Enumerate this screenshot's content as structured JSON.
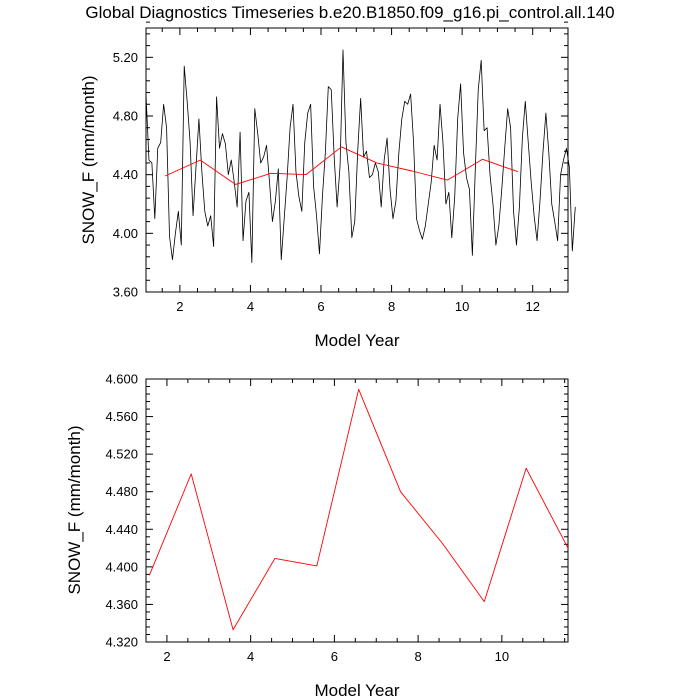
{
  "title": "Global Diagnostics Timeseries b.e20.B1850.f09_g16.pi_control.all.140",
  "colors": {
    "monthly": "#000000",
    "annual": "#ff0000"
  },
  "chart_data": [
    {
      "type": "line",
      "xlabel": "Model Year",
      "ylabel": "SNOW_F (mm/month)",
      "xlim": [
        1.04,
        13.0
      ],
      "ylim": [
        3.6,
        5.4
      ],
      "xticks": [
        2,
        4,
        6,
        8,
        10,
        12
      ],
      "xtick_labels": [
        "2",
        "4",
        "6",
        "8",
        "10",
        "12"
      ],
      "yticks": [
        3.6,
        4.0,
        4.4,
        4.8,
        5.2
      ],
      "ytick_labels": [
        "3.60",
        "4.00",
        "4.40",
        "4.80",
        "5.20"
      ],
      "series": [
        {
          "name": "monthly",
          "color": "#000000",
          "x_start": 1.04,
          "x_step": 0.08333,
          "values": [
            4.95,
            4.5,
            4.48,
            4.1,
            4.58,
            4.62,
            4.88,
            4.72,
            3.98,
            3.82,
            4.0,
            4.15,
            3.92,
            5.14,
            4.9,
            4.62,
            4.12,
            4.45,
            4.78,
            4.42,
            4.15,
            4.05,
            4.12,
            3.91,
            4.93,
            4.58,
            4.68,
            4.61,
            4.4,
            4.5,
            4.35,
            4.18,
            4.69,
            3.95,
            4.22,
            4.28,
            3.8,
            4.85,
            4.68,
            4.48,
            4.52,
            4.6,
            4.35,
            4.08,
            4.22,
            4.44,
            3.82,
            4.1,
            4.38,
            4.72,
            4.88,
            4.42,
            4.25,
            4.15,
            4.62,
            4.82,
            4.88,
            4.32,
            4.12,
            3.86,
            4.25,
            4.55,
            5.0,
            4.98,
            4.52,
            4.18,
            4.46,
            5.25,
            4.62,
            4.42,
            3.97,
            4.08,
            4.56,
            4.92,
            4.52,
            4.56,
            4.38,
            4.4,
            4.48,
            4.42,
            4.18,
            4.5,
            4.65,
            4.3,
            4.1,
            4.22,
            4.55,
            4.78,
            4.9,
            4.88,
            4.95,
            4.62,
            4.1,
            4.02,
            3.96,
            4.05,
            4.2,
            4.35,
            4.6,
            4.5,
            4.88,
            4.62,
            4.2,
            4.28,
            3.97,
            4.25,
            4.78,
            5.02,
            4.55,
            4.38,
            4.3,
            3.85,
            4.44,
            4.98,
            5.18,
            4.7,
            4.72,
            4.4,
            4.2,
            3.92,
            4.05,
            4.3,
            4.58,
            4.85,
            4.72,
            4.15,
            3.92,
            4.18,
            4.65,
            4.9,
            4.62,
            4.35,
            4.12,
            3.95,
            4.22,
            4.55,
            4.82,
            4.55,
            4.2,
            4.08,
            3.95,
            4.4,
            4.5,
            4.58,
            4.45,
            3.88,
            4.18
          ]
        },
        {
          "name": "annual",
          "color": "#ff0000",
          "x": [
            1.58,
            2.58,
            3.58,
            4.58,
            5.58,
            6.58,
            7.58,
            8.58,
            9.58,
            10.58,
            11.58
          ],
          "values": [
            4.391,
            4.499,
            4.333,
            4.409,
            4.401,
            4.589,
            4.48,
            4.425,
            4.363,
            4.505,
            4.42
          ]
        }
      ]
    },
    {
      "type": "line",
      "xlabel": "Model Year",
      "ylabel": "SNOW_F (mm/month)",
      "xlim": [
        1.5,
        11.58
      ],
      "ylim": [
        4.32,
        4.6
      ],
      "xticks": [
        2,
        4,
        6,
        8,
        10
      ],
      "xtick_labels": [
        "2",
        "4",
        "6",
        "8",
        "10"
      ],
      "yticks": [
        4.32,
        4.36,
        4.4,
        4.44,
        4.48,
        4.52,
        4.56,
        4.6
      ],
      "ytick_labels": [
        "4.320",
        "4.360",
        "4.400",
        "4.440",
        "4.480",
        "4.520",
        "4.560",
        "4.600"
      ],
      "series": [
        {
          "name": "annual",
          "color": "#ff0000",
          "x": [
            1.58,
            2.58,
            3.58,
            4.58,
            5.58,
            6.58,
            7.58,
            8.58,
            9.58,
            10.58,
            11.58
          ],
          "values": [
            4.391,
            4.499,
            4.333,
            4.409,
            4.401,
            4.589,
            4.48,
            4.425,
            4.363,
            4.505,
            4.42
          ]
        }
      ]
    }
  ]
}
